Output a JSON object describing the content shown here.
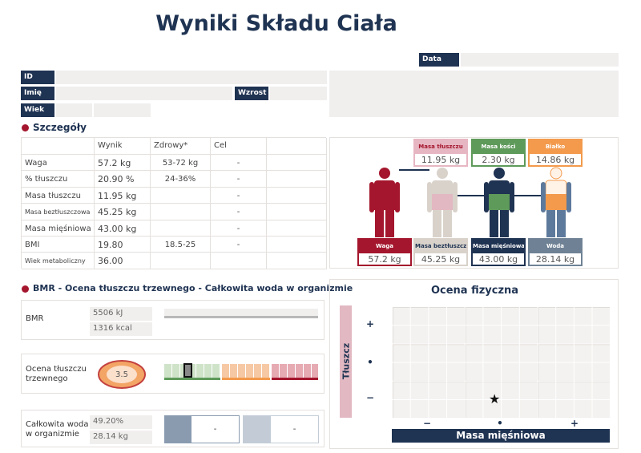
{
  "header": {
    "title": "Wyniki Składu Ciała"
  },
  "fields": {
    "date": "Data",
    "id": "ID",
    "name": "Imię",
    "height": "Wzrost",
    "age": "Wiek"
  },
  "details": {
    "title": "Szczegóły",
    "columns": [
      "Wynik",
      "Zdrowy*",
      "Cel"
    ],
    "rows": [
      {
        "label": "Waga",
        "result": "57.2 kg",
        "healthy": "53-72 kg",
        "target": "-"
      },
      {
        "label": "% tłuszczu",
        "result": "20.90 %",
        "healthy": "24-36%",
        "target": "-"
      },
      {
        "label": "Masa tłuszczu",
        "result": "11.95 kg",
        "target": "-"
      },
      {
        "label": "Masa beztłuszczowa",
        "result": "45.25 kg",
        "target": "-"
      },
      {
        "label": "Masa mięśniowa",
        "result": "43.00 kg",
        "target": "-"
      },
      {
        "label": "BMI",
        "result": "19.80",
        "healthy": "18.5-25",
        "target": "-"
      },
      {
        "label": "Wiek metaboliczny",
        "result": "36.00"
      }
    ]
  },
  "composition": {
    "boxes": [
      {
        "label": "Masa tłuszczu",
        "value": "11.95 kg"
      },
      {
        "label": "Masa kości",
        "value": "2.30 kg"
      },
      {
        "label": "Białko",
        "value": "14.86 kg"
      },
      {
        "label": "Waga",
        "value": "57.2 kg"
      },
      {
        "label": "Masa beztłuszczowa",
        "value": "45.25 kg"
      },
      {
        "label": "Masa mięśniowa",
        "value": "43.00 kg"
      },
      {
        "label": "Woda",
        "value": "28.14 kg"
      }
    ]
  },
  "bmr": {
    "title": "BMR - Ocena tłuszczu trzewnego - Całkowita woda w organizmie",
    "bmr_label": "BMR",
    "bmr_values": [
      "5506 kJ",
      "1316 kcal"
    ],
    "visceral_label": "Ocena tłuszczu trzewnego",
    "visceral_value": "3.5",
    "water_label": "Całkowita woda w organizmie",
    "water_values": [
      "49.20%",
      "28.14 kg"
    ],
    "water_targets": [
      "-",
      "-"
    ]
  },
  "physical": {
    "title": "Ocena fizyczna",
    "y_label": "Tłuszcz",
    "y_levels": [
      "+",
      "•",
      "−"
    ],
    "x_label": "Masa mięśniowa",
    "x_levels": [
      "−",
      "•",
      "+"
    ]
  }
}
